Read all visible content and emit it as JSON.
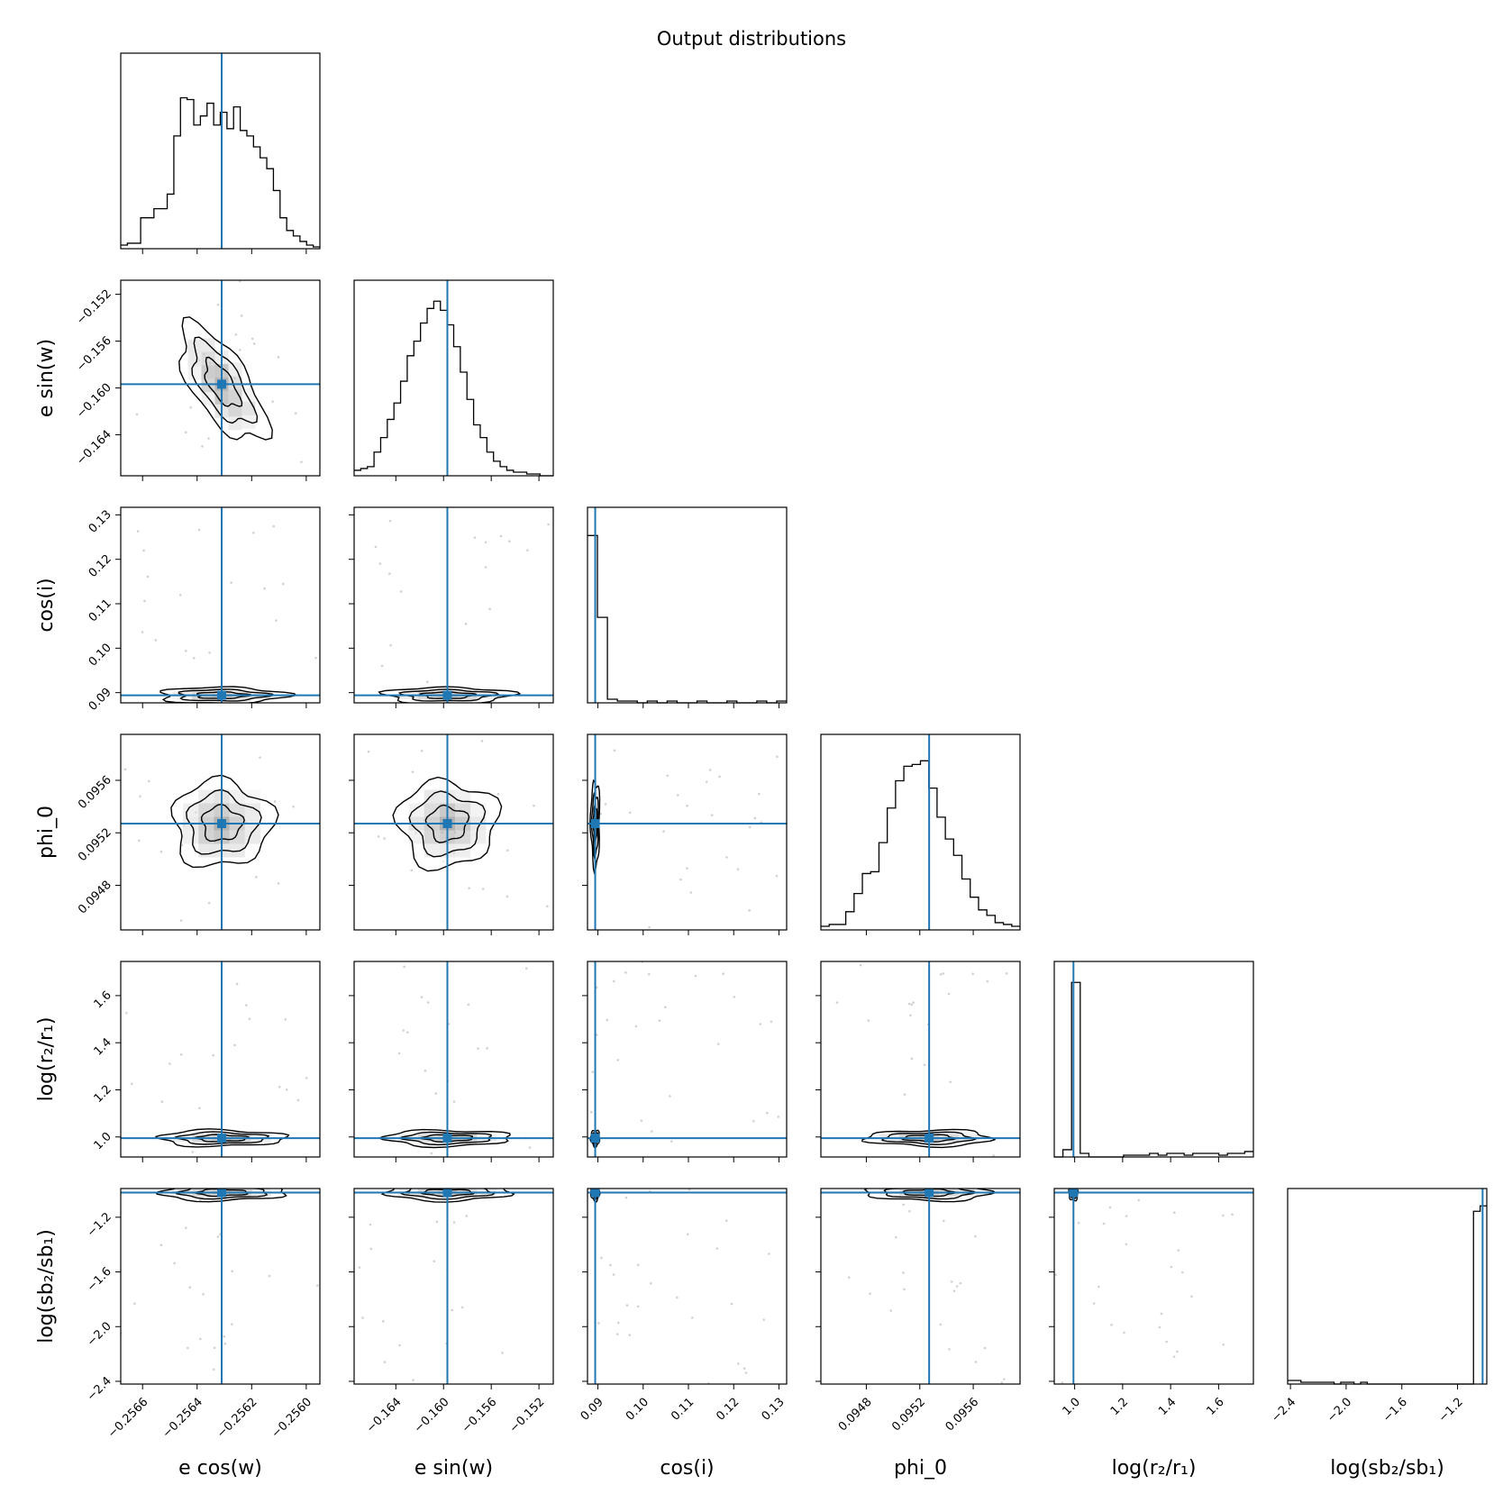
{
  "chart_data": {
    "type": "scatter",
    "title": "Output distributions",
    "truth_color": "#1f77b4",
    "parameters": [
      {
        "label": "e cos(w)",
        "ticks": [
          "−0.2566",
          "−0.2564",
          "−0.2562",
          "−0.2560"
        ],
        "tick_values": [
          -0.2566,
          -0.2564,
          -0.2562,
          -0.256
        ],
        "range": [
          -0.25668,
          -0.25595
        ],
        "truth": -0.25631
      },
      {
        "label": "e sin(w)",
        "ticks": [
          "−0.164",
          "−0.160",
          "−0.156",
          "−0.152"
        ],
        "tick_values": [
          -0.164,
          -0.16,
          -0.156,
          -0.152
        ],
        "range": [
          -0.1675,
          -0.1508
        ],
        "truth": -0.15968
      },
      {
        "label": "cos(i)",
        "ticks": [
          "0.09",
          "0.10",
          "0.11",
          "0.12",
          "0.13"
        ],
        "tick_values": [
          0.09,
          0.1,
          0.11,
          0.12,
          0.13
        ],
        "range": [
          0.0877,
          0.1317
        ],
        "truth": 0.0894
      },
      {
        "label": "phi_0",
        "ticks": [
          "0.0948",
          "0.0952",
          "0.0956"
        ],
        "tick_values": [
          0.0948,
          0.0952,
          0.0956
        ],
        "range": [
          0.09446,
          0.09595
        ],
        "truth": 0.09527
      },
      {
        "label": "log(r₂/r₁)",
        "ticks": [
          "1.0",
          "1.2",
          "1.4",
          "1.6"
        ],
        "tick_values": [
          1.0,
          1.2,
          1.4,
          1.6
        ],
        "range": [
          0.915,
          1.745
        ],
        "truth": 0.995
      },
      {
        "label": "log(sb₂/sb₁)",
        "ticks": [
          "−2.4",
          "−2.0",
          "−1.6",
          "−1.2"
        ],
        "tick_values": [
          -2.4,
          -2.0,
          -1.6,
          -1.2
        ],
        "range": [
          -2.42,
          -0.99
        ],
        "truth": -1.02
      }
    ],
    "histograms": [
      {
        "parameter": "e cos(w)",
        "values": [
          0.02,
          0.03,
          0.03,
          0.17,
          0.17,
          0.22,
          0.22,
          0.3,
          0.62,
          0.83,
          0.82,
          0.68,
          0.73,
          0.8,
          0.68,
          0.75,
          0.66,
          0.78,
          0.65,
          0.62,
          0.56,
          0.5,
          0.44,
          0.32,
          0.17,
          0.1,
          0.07,
          0.04,
          0.02,
          0.01
        ]
      },
      {
        "parameter": "e sin(w)",
        "values": [
          0.03,
          0.04,
          0.05,
          0.13,
          0.21,
          0.31,
          0.4,
          0.52,
          0.66,
          0.74,
          0.84,
          0.92,
          0.96,
          0.91,
          0.83,
          0.71,
          0.57,
          0.42,
          0.28,
          0.21,
          0.13,
          0.08,
          0.05,
          0.03,
          0.02,
          0.02,
          0.01,
          0.01,
          0.0,
          0.0
        ]
      },
      {
        "parameter": "cos(i)",
        "values": [
          0.92,
          0.47,
          0.02,
          0.01,
          0.01,
          0.0,
          0.01,
          0.0,
          0.01,
          0.0,
          0.0,
          0.01,
          0.0,
          0.0,
          0.01,
          0.0,
          0.0,
          0.01,
          0.0,
          0.01
        ]
      },
      {
        "parameter": "phi_0",
        "values": [
          0.02,
          0.03,
          0.03,
          0.1,
          0.2,
          0.31,
          0.32,
          0.48,
          0.67,
          0.82,
          0.9,
          0.91,
          0.93,
          0.78,
          0.62,
          0.5,
          0.41,
          0.28,
          0.18,
          0.11,
          0.08,
          0.04,
          0.03,
          0.02
        ]
      },
      {
        "parameter": "log(r₂/r₁)",
        "values": [
          0.0,
          0.04,
          0.96,
          0.02,
          0.0,
          0.0,
          0.0,
          0.0,
          0.01,
          0.01,
          0.01,
          0.02,
          0.01,
          0.02,
          0.02,
          0.01,
          0.02,
          0.02,
          0.02,
          0.01,
          0.02,
          0.02,
          0.03
        ]
      },
      {
        "parameter": "log(sb₂/sb₁)",
        "values": [
          0.02,
          0.02,
          0.01,
          0.01,
          0.01,
          0.01,
          0.01,
          0.0,
          0.01,
          0.01,
          0.0,
          0.01,
          0.0,
          0.0,
          0.0,
          0.0,
          0.0,
          0.0,
          0.0,
          0.0,
          0.0,
          0.0,
          0.0,
          0.0,
          0.0,
          0.0,
          0.0,
          0.0,
          0.95,
          0.98
        ]
      }
    ],
    "grid": false,
    "legend": "none"
  }
}
